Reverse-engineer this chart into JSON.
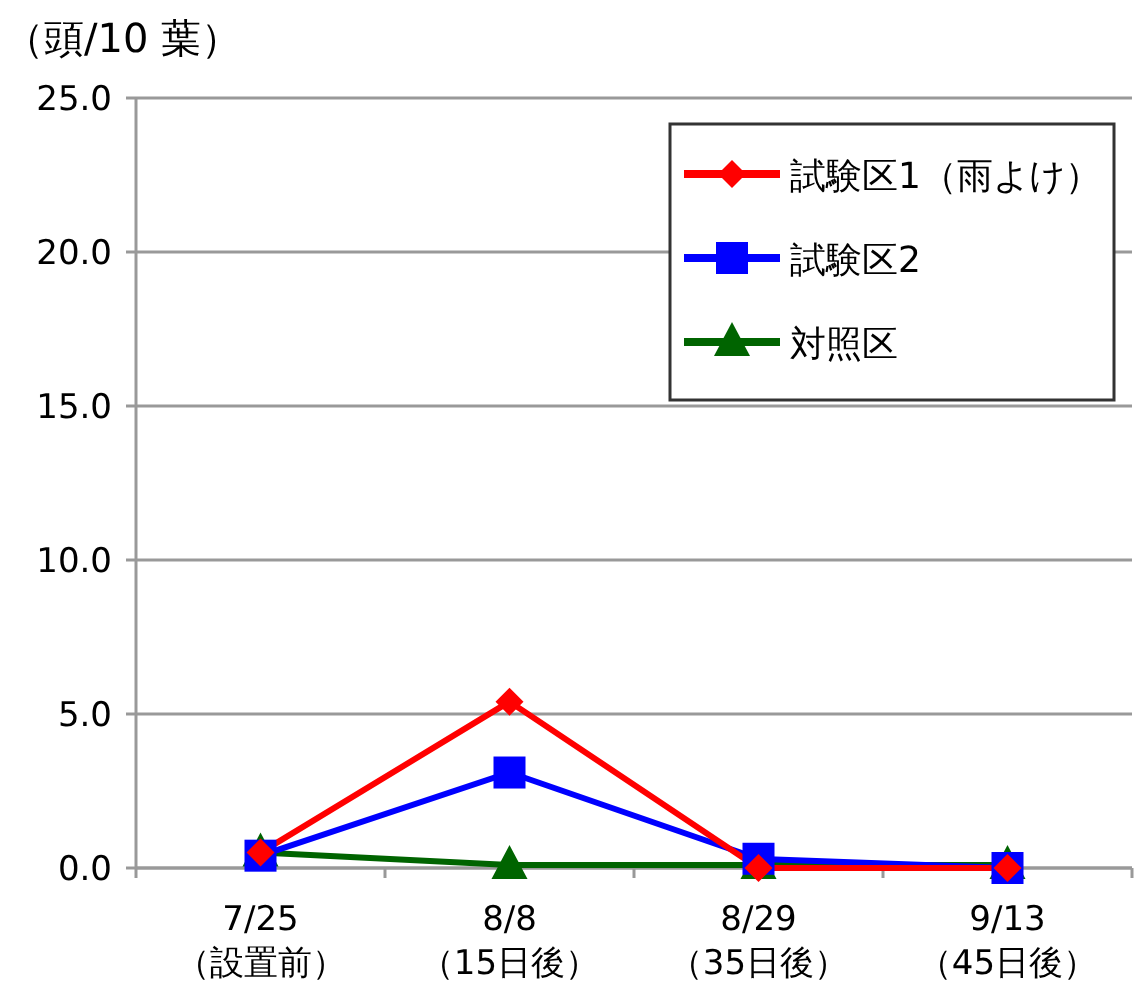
{
  "chart_data": {
    "type": "line",
    "ylabel": "（頭/10 葉）",
    "categories": [
      "7/25\n（設置前）",
      "8/8\n（15日後）",
      "8/29\n（35日後）",
      "9/13\n（45日後）"
    ],
    "series": [
      {
        "name": "試験区1（雨よけ）",
        "color": "#ff0000",
        "marker": "diamond",
        "values": [
          0.5,
          5.4,
          0.0,
          0.0
        ]
      },
      {
        "name": "試験区2",
        "color": "#0000ff",
        "marker": "square",
        "values": [
          0.4,
          3.1,
          0.3,
          0.0
        ]
      },
      {
        "name": "対照区",
        "color": "#006400",
        "marker": "triangle",
        "values": [
          0.5,
          0.1,
          0.1,
          0.1
        ]
      }
    ],
    "ylim": [
      0,
      25
    ],
    "yticks": [
      {
        "value": 0,
        "label": "0.0"
      },
      {
        "value": 5,
        "label": "5.0"
      },
      {
        "value": 10,
        "label": "10.0"
      },
      {
        "value": 15,
        "label": "15.0"
      },
      {
        "value": 20,
        "label": "20.0"
      },
      {
        "value": 25,
        "label": "25.0"
      }
    ],
    "grid": "y",
    "legend": "top right",
    "line_style": "solid"
  }
}
